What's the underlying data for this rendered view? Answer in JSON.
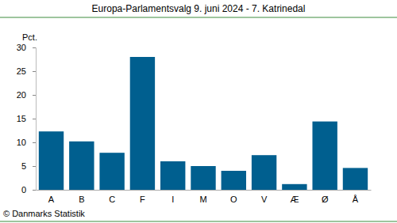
{
  "chart_data": {
    "type": "bar",
    "title": "Europa-Parlamentsvalg 9. juni 2024 - 7. Katrinedal",
    "y_label": "Pct.",
    "source": "© Danmarks Statistik",
    "categories": [
      "A",
      "B",
      "C",
      "F",
      "I",
      "M",
      "O",
      "V",
      "Æ",
      "Ø",
      "Å"
    ],
    "values": [
      12.3,
      10.2,
      7.8,
      28.0,
      6.0,
      5.0,
      4.0,
      7.3,
      1.2,
      14.4,
      4.6
    ],
    "color": "#005f8f",
    "ylim": [
      0,
      30
    ],
    "yticks": [
      0,
      5,
      10,
      15,
      20,
      25,
      30
    ],
    "grid": false
  }
}
